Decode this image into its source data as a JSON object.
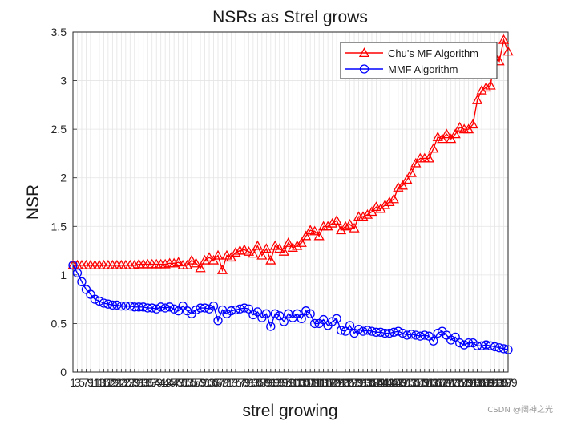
{
  "chart_data": {
    "type": "line",
    "title": "NSRs as Strel grows",
    "xlabel": "strel growing",
    "ylabel": "NSR",
    "ylim": [
      0,
      3.5
    ],
    "yticks": [
      0,
      0.5,
      1,
      1.5,
      2,
      2.5,
      3,
      3.5
    ],
    "x": [
      1,
      3,
      5,
      7,
      9,
      11,
      13,
      15,
      17,
      19,
      21,
      23,
      25,
      27,
      29,
      31,
      33,
      35,
      37,
      39,
      41,
      43,
      45,
      47,
      49,
      51,
      53,
      55,
      57,
      59,
      61,
      63,
      65,
      67,
      69,
      71,
      73,
      75,
      77,
      79,
      81,
      83,
      85,
      87,
      89,
      91,
      93,
      95,
      97,
      99,
      101,
      103,
      105,
      107,
      109,
      111,
      113,
      115,
      117,
      119,
      121,
      123,
      125,
      127,
      129,
      131,
      133,
      135,
      137,
      139,
      141,
      143,
      145,
      147,
      149,
      151,
      153,
      155,
      157,
      159,
      161,
      163,
      165,
      167,
      169,
      171,
      173,
      175,
      177,
      179,
      181,
      183,
      185,
      187,
      189,
      191,
      193,
      195,
      197,
      199
    ],
    "xlim": [
      1,
      199
    ],
    "grid": true,
    "legend_position": "top-right",
    "series": [
      {
        "name": "Chu's MF Algorithm",
        "color": "#ff0000",
        "marker": "triangle",
        "values": [
          1.1,
          1.1,
          1.1,
          1.1,
          1.1,
          1.1,
          1.1,
          1.1,
          1.1,
          1.1,
          1.1,
          1.1,
          1.1,
          1.1,
          1.1,
          1.11,
          1.11,
          1.11,
          1.11,
          1.11,
          1.11,
          1.11,
          1.12,
          1.12,
          1.13,
          1.1,
          1.1,
          1.15,
          1.12,
          1.07,
          1.15,
          1.18,
          1.15,
          1.2,
          1.05,
          1.2,
          1.18,
          1.23,
          1.25,
          1.26,
          1.24,
          1.22,
          1.3,
          1.2,
          1.27,
          1.15,
          1.3,
          1.27,
          1.24,
          1.33,
          1.28,
          1.3,
          1.33,
          1.4,
          1.46,
          1.45,
          1.4,
          1.5,
          1.5,
          1.53,
          1.56,
          1.46,
          1.5,
          1.52,
          1.48,
          1.6,
          1.6,
          1.62,
          1.65,
          1.7,
          1.68,
          1.72,
          1.75,
          1.78,
          1.9,
          1.92,
          1.98,
          2.05,
          2.15,
          2.2,
          2.2,
          2.2,
          2.3,
          2.42,
          2.4,
          2.45,
          2.4,
          2.45,
          2.52,
          2.5,
          2.5,
          2.55,
          2.8,
          2.9,
          2.93,
          2.95,
          3.25,
          3.2,
          3.42,
          3.3
        ]
      },
      {
        "name": "MMF Algorithm",
        "color": "#0000ff",
        "marker": "circle",
        "values": [
          1.1,
          1.02,
          0.93,
          0.85,
          0.8,
          0.75,
          0.73,
          0.71,
          0.7,
          0.69,
          0.69,
          0.68,
          0.68,
          0.68,
          0.67,
          0.67,
          0.67,
          0.66,
          0.66,
          0.65,
          0.67,
          0.66,
          0.67,
          0.65,
          0.63,
          0.68,
          0.63,
          0.6,
          0.64,
          0.66,
          0.66,
          0.65,
          0.68,
          0.53,
          0.64,
          0.6,
          0.63,
          0.64,
          0.65,
          0.66,
          0.65,
          0.59,
          0.62,
          0.56,
          0.6,
          0.47,
          0.6,
          0.58,
          0.52,
          0.6,
          0.56,
          0.6,
          0.55,
          0.63,
          0.6,
          0.5,
          0.5,
          0.54,
          0.48,
          0.52,
          0.55,
          0.43,
          0.42,
          0.48,
          0.4,
          0.44,
          0.42,
          0.43,
          0.42,
          0.41,
          0.41,
          0.4,
          0.4,
          0.41,
          0.42,
          0.4,
          0.38,
          0.39,
          0.38,
          0.37,
          0.38,
          0.37,
          0.32,
          0.4,
          0.42,
          0.38,
          0.33,
          0.36,
          0.3,
          0.28,
          0.3,
          0.3,
          0.27,
          0.27,
          0.28,
          0.27,
          0.26,
          0.25,
          0.24,
          0.23
        ]
      }
    ]
  },
  "watermark": "CSDN @阔神之光"
}
